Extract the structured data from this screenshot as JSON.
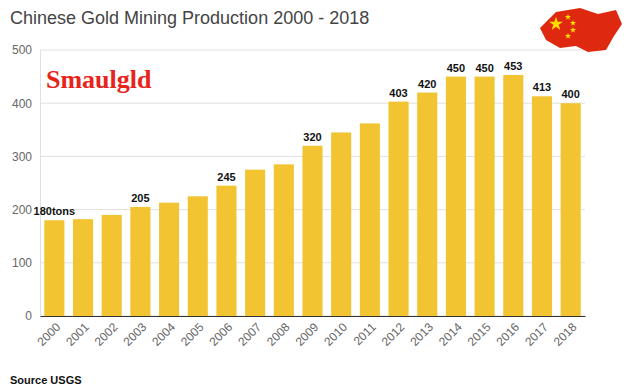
{
  "chart_data": {
    "type": "bar",
    "title": "Chinese Gold Mining Production 2000 - 2018",
    "logo": "Smaulgld",
    "source": "Source USGS",
    "categories": [
      "2000",
      "2001",
      "2002",
      "2003",
      "2004",
      "2005",
      "2006",
      "2007",
      "2008",
      "2009",
      "2010",
      "2011",
      "2012",
      "2013",
      "2014",
      "2015",
      "2016",
      "2017",
      "2018"
    ],
    "values": [
      180,
      182,
      190,
      205,
      213,
      225,
      245,
      275,
      285,
      320,
      345,
      362,
      403,
      420,
      450,
      450,
      453,
      413,
      400
    ],
    "value_labels": [
      "180tons",
      null,
      null,
      "205",
      null,
      null,
      "245",
      null,
      null,
      "320",
      null,
      null,
      "403",
      "420",
      "450",
      "450",
      "453",
      "413",
      "400"
    ],
    "data_labels": true,
    "color": "#f2c431",
    "ylim": [
      0,
      500
    ],
    "yticks": [
      0,
      100,
      200,
      300,
      400,
      500
    ],
    "grid": true
  }
}
